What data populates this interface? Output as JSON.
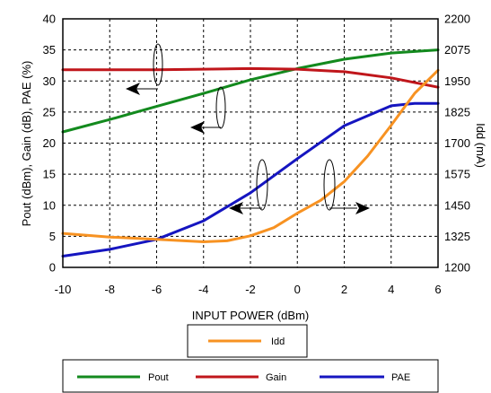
{
  "chart_data": {
    "type": "line",
    "xlabel": "INPUT POWER (dBm)",
    "ylabel": "Pout (dBm), Gain (dB), PAE (%)",
    "y2label": "Idd (mA)",
    "xlim": [
      -10,
      6
    ],
    "ylim": [
      0,
      40
    ],
    "y2lim": [
      1200,
      2200
    ],
    "x_ticks": [
      "-10",
      "-8",
      "-6",
      "-4",
      "-2",
      "0",
      "2",
      "4",
      "6"
    ],
    "y_ticks": [
      "0",
      "5",
      "10",
      "15",
      "20",
      "25",
      "30",
      "35",
      "40"
    ],
    "y2_ticks": [
      "1200",
      "1325",
      "1450",
      "1575",
      "1700",
      "1825",
      "1950",
      "2075",
      "2200"
    ],
    "grid": true,
    "legend_position": "bottom",
    "series": [
      {
        "name": "Pout",
        "axis": "left",
        "color": "#138a1e",
        "points": [
          [
            -10,
            21.8
          ],
          [
            -8,
            23.8
          ],
          [
            -6,
            25.9
          ],
          [
            -4,
            28.0
          ],
          [
            -2,
            30.2
          ],
          [
            0,
            32.0
          ],
          [
            2,
            33.5
          ],
          [
            4,
            34.5
          ],
          [
            6,
            35.0
          ]
        ]
      },
      {
        "name": "Gain",
        "axis": "left",
        "color": "#c0161b",
        "points": [
          [
            -10,
            31.8
          ],
          [
            -8,
            31.8
          ],
          [
            -6,
            31.8
          ],
          [
            -4,
            31.9
          ],
          [
            -2,
            32.0
          ],
          [
            0,
            31.9
          ],
          [
            2,
            31.5
          ],
          [
            4,
            30.5
          ],
          [
            6,
            29.0
          ]
        ]
      },
      {
        "name": "PAE",
        "axis": "left",
        "color": "#1515c0",
        "points": [
          [
            -10,
            1.8
          ],
          [
            -8,
            2.9
          ],
          [
            -6,
            4.5
          ],
          [
            -4,
            7.5
          ],
          [
            -2,
            12.0
          ],
          [
            0,
            17.5
          ],
          [
            2,
            22.8
          ],
          [
            4,
            26.0
          ],
          [
            5,
            26.4
          ],
          [
            6,
            26.4
          ]
        ]
      },
      {
        "name": "Idd",
        "axis": "right",
        "color": "#f79222",
        "points": [
          [
            -10,
            1337
          ],
          [
            -8,
            1322
          ],
          [
            -6,
            1313
          ],
          [
            -4,
            1303
          ],
          [
            -3,
            1307
          ],
          [
            -2,
            1327
          ],
          [
            -1,
            1360
          ],
          [
            0,
            1418
          ],
          [
            1,
            1470
          ],
          [
            2,
            1545
          ],
          [
            3,
            1648
          ],
          [
            4,
            1772
          ],
          [
            5,
            1900
          ],
          [
            6,
            1993
          ]
        ]
      }
    ]
  }
}
